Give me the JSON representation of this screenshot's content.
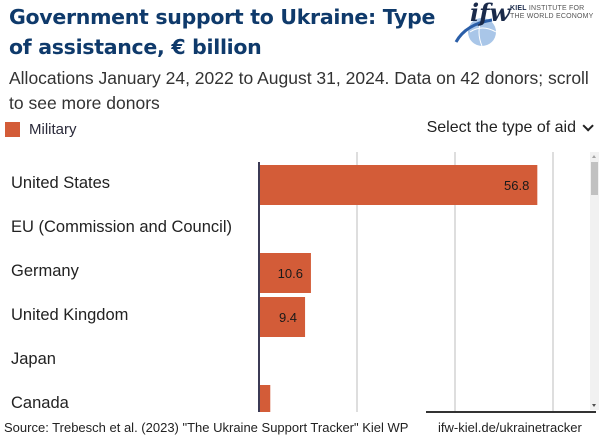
{
  "header": {
    "title": "Government support to Ukraine:  Type of assistance, € billion",
    "subtitle": "Allocations January 24, 2022 to August 31, 2024. Data on 42 donors; scroll to see more donors",
    "logo": {
      "mark": "ifw",
      "line1_bold": "KIEL",
      "line1": "INSTITUTE FOR",
      "line2": "THE WORLD ECONOMY"
    }
  },
  "controls": {
    "select_label": "Select the type of aid",
    "select_icon": "chevron-down-icon"
  },
  "legend": {
    "items": [
      {
        "label": "Military",
        "color": "#d35c38"
      }
    ]
  },
  "footer": {
    "source": "Source: Trebesch et al. (2023) \"The Ukraine Support Tracker\" Kiel WP",
    "link": "ifw-kiel.de/ukrainetracker"
  },
  "chart_data": {
    "type": "bar",
    "orientation": "horizontal",
    "title": "Government support to Ukraine:  Type of assistance, € billion",
    "categories": [
      "United States",
      "EU (Commission and Council)",
      "Germany",
      "United Kingdom",
      "Japan",
      "Canada"
    ],
    "series": [
      {
        "name": "Military",
        "color": "#d35c38",
        "values": [
          56.8,
          0,
          10.6,
          9.4,
          0,
          2.3
        ],
        "labels": [
          "56.8",
          "",
          "10.6",
          "9.4",
          "",
          ""
        ]
      }
    ],
    "xlim": [
      0,
      66
    ],
    "gridlines": [
      20,
      40,
      60
    ],
    "grid": true,
    "legend_position": "top-left",
    "xlabel": "",
    "ylabel": ""
  }
}
